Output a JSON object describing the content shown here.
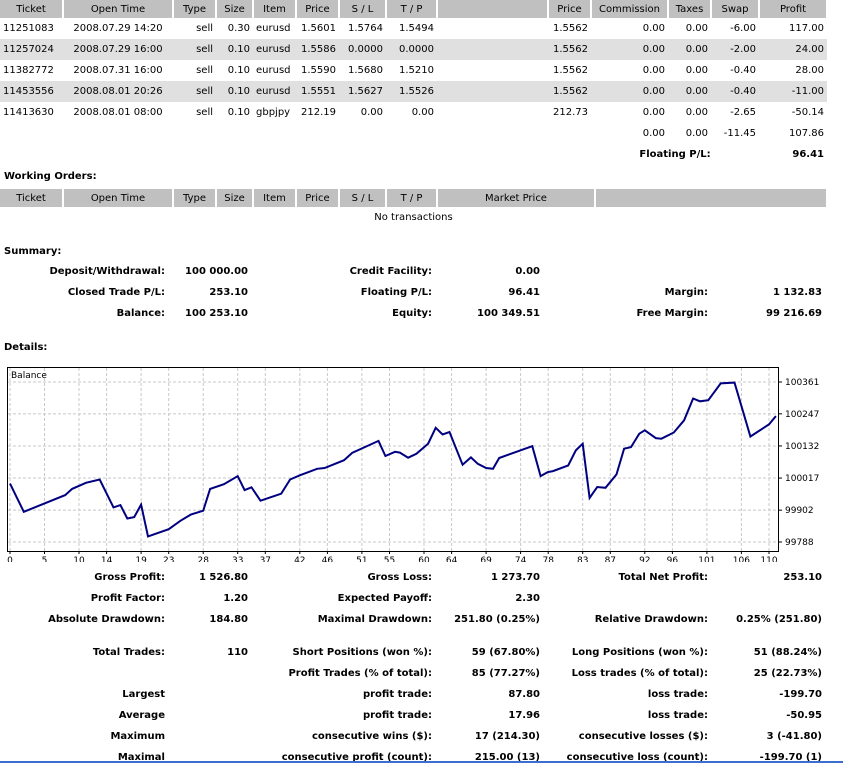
{
  "open_trades": {
    "headers": [
      "Ticket",
      "Open Time",
      "Type",
      "Size",
      "Item",
      "Price",
      "S / L",
      "T / P",
      "",
      "Price",
      "Commission",
      "Taxes",
      "Swap",
      "Profit"
    ],
    "rows": [
      [
        "11251083",
        "2008.07.29 14:20",
        "sell",
        "0.30",
        "eurusd",
        "1.5601",
        "1.5764",
        "1.5494",
        "",
        "1.5562",
        "0.00",
        "0.00",
        "-6.00",
        "117.00"
      ],
      [
        "11257024",
        "2008.07.29 16:00",
        "sell",
        "0.10",
        "eurusd",
        "1.5586",
        "0.0000",
        "0.0000",
        "",
        "1.5562",
        "0.00",
        "0.00",
        "-2.00",
        "24.00"
      ],
      [
        "11382772",
        "2008.07.31 16:00",
        "sell",
        "0.10",
        "eurusd",
        "1.5590",
        "1.5680",
        "1.5210",
        "",
        "1.5562",
        "0.00",
        "0.00",
        "-0.40",
        "28.00"
      ],
      [
        "11453556",
        "2008.08.01 20:26",
        "sell",
        "0.10",
        "eurusd",
        "1.5551",
        "1.5627",
        "1.5526",
        "",
        "1.5562",
        "0.00",
        "0.00",
        "-0.40",
        "-11.00"
      ],
      [
        "11413630",
        "2008.08.01 08:00",
        "sell",
        "0.10",
        "gbpjpy",
        "212.19",
        "0.00",
        "0.00",
        "",
        "212.73",
        "0.00",
        "0.00",
        "-2.65",
        "-50.14"
      ]
    ],
    "totals": {
      "commission": "0.00",
      "taxes": "0.00",
      "swap": "-11.45",
      "profit": "107.86"
    },
    "floating_label": "Floating P/L:",
    "floating_value": "96.41"
  },
  "working_orders": {
    "title": "Working Orders:",
    "headers": [
      "Ticket",
      "Open Time",
      "Type",
      "Size",
      "Item",
      "Price",
      "S / L",
      "T / P",
      "Market Price",
      ""
    ],
    "empty": "No transactions"
  },
  "summary": {
    "title": "Summary:",
    "deposit_label": "Deposit/Withdrawal:",
    "deposit": "100 000.00",
    "credit_label": "Credit Facility:",
    "credit": "0.00",
    "closed_label": "Closed Trade P/L:",
    "closed": "253.10",
    "floating_label": "Floating P/L:",
    "floating": "96.41",
    "margin_label": "Margin:",
    "margin": "1 132.83",
    "balance_label": "Balance:",
    "balance": "100 253.10",
    "equity_label": "Equity:",
    "equity": "100 349.51",
    "free_margin_label": "Free Margin:",
    "free_margin": "99 216.69"
  },
  "details": {
    "title": "Details:",
    "stats": [
      [
        "Gross Profit:",
        "1 526.80",
        "Gross Loss:",
        "1 273.70",
        "Total Net Profit:",
        "253.10"
      ],
      [
        "Profit Factor:",
        "1.20",
        "Expected Payoff:",
        "2.30",
        "",
        ""
      ],
      [
        "Absolute Drawdown:",
        "184.80",
        "Maximal Drawdown:",
        "251.80 (0.25%)",
        "Relative Drawdown:",
        "0.25% (251.80)"
      ],
      [
        "Total Trades:",
        "110",
        "Short Positions (won %):",
        "59 (67.80%)",
        "Long Positions (won %):",
        "51 (88.24%)"
      ],
      [
        "",
        "",
        "Profit Trades (% of total):",
        "85 (77.27%)",
        "Loss trades (% of total):",
        "25 (22.73%)"
      ],
      [
        "Largest",
        "",
        "profit trade:",
        "87.80",
        "loss trade:",
        "-199.70"
      ],
      [
        "Average",
        "",
        "profit trade:",
        "17.96",
        "loss trade:",
        "-50.95"
      ],
      [
        "Maximum",
        "",
        "consecutive wins ($):",
        "17 (214.30)",
        "consecutive losses ($):",
        "3 (-41.80)"
      ],
      [
        "Maximal",
        "",
        "consecutive profit (count):",
        "215.00 (13)",
        "consecutive loss (count):",
        "-199.70 (1)"
      ]
    ]
  },
  "chart_data": {
    "type": "line",
    "title": "Balance",
    "xlabel": "",
    "ylabel": "",
    "xlim": [
      0,
      111
    ],
    "ylim": [
      99775,
      100375
    ],
    "x_ticks": [
      "0",
      "5",
      "10",
      "14",
      "19",
      "23",
      "28",
      "33",
      "37",
      "42",
      "46",
      "51",
      "55",
      "60",
      "64",
      "69",
      "74",
      "78",
      "83",
      "87",
      "92",
      "96",
      "101",
      "106",
      "110"
    ],
    "y_ticks": [
      "100361",
      "100247",
      "100132",
      "100017",
      "99902",
      "99788"
    ],
    "line_color": "#000080",
    "series": [
      {
        "name": "Balance",
        "points": [
          [
            0,
            99997
          ],
          [
            2,
            99896
          ],
          [
            8,
            99956
          ],
          [
            9,
            99978
          ],
          [
            11,
            100000
          ],
          [
            13,
            100012
          ],
          [
            15,
            99912
          ],
          [
            16,
            99920
          ],
          [
            17,
            99872
          ],
          [
            18,
            99877
          ],
          [
            19,
            99922
          ],
          [
            20,
            99808
          ],
          [
            23,
            99834
          ],
          [
            24.7,
            99864
          ],
          [
            26.2,
            99886
          ],
          [
            28,
            99900
          ],
          [
            29,
            99978
          ],
          [
            31,
            99995
          ],
          [
            33,
            100024
          ],
          [
            34,
            99974
          ],
          [
            35,
            99984
          ],
          [
            36.3,
            99936
          ],
          [
            39.3,
            99961
          ],
          [
            40.6,
            100012
          ],
          [
            42,
            100027
          ],
          [
            44.5,
            100050
          ],
          [
            45.6,
            100053
          ],
          [
            48.4,
            100081
          ],
          [
            49.6,
            100107
          ],
          [
            53.4,
            100150
          ],
          [
            54.4,
            100096
          ],
          [
            55.8,
            100111
          ],
          [
            56.5,
            100108
          ],
          [
            57.7,
            100090
          ],
          [
            58.9,
            100104
          ],
          [
            60.6,
            100140
          ],
          [
            61.7,
            100197
          ],
          [
            62.7,
            100173
          ],
          [
            63.7,
            100182
          ],
          [
            65.6,
            100065
          ],
          [
            66.8,
            100091
          ],
          [
            67.8,
            100068
          ],
          [
            69,
            100053
          ],
          [
            70,
            100050
          ],
          [
            70.9,
            100089
          ],
          [
            74.4,
            100120
          ],
          [
            75.7,
            100131
          ],
          [
            76.9,
            100024
          ],
          [
            77.9,
            100038
          ],
          [
            78.7,
            100042
          ],
          [
            80.9,
            100062
          ],
          [
            82,
            100116
          ],
          [
            83,
            100140
          ],
          [
            84,
            99946
          ],
          [
            85.1,
            99985
          ],
          [
            86.3,
            99982
          ],
          [
            87.9,
            100030
          ],
          [
            89,
            100122
          ],
          [
            90,
            100128
          ],
          [
            91.2,
            100176
          ],
          [
            92,
            100188
          ],
          [
            93.6,
            100160
          ],
          [
            94.4,
            100158
          ],
          [
            96.2,
            100180
          ],
          [
            97.7,
            100224
          ],
          [
            99,
            100302
          ],
          [
            100,
            100292
          ],
          [
            101.2,
            100296
          ],
          [
            103,
            100356
          ],
          [
            105,
            100359
          ],
          [
            107.3,
            100166
          ],
          [
            110,
            100209
          ],
          [
            111,
            100239
          ]
        ]
      }
    ]
  }
}
